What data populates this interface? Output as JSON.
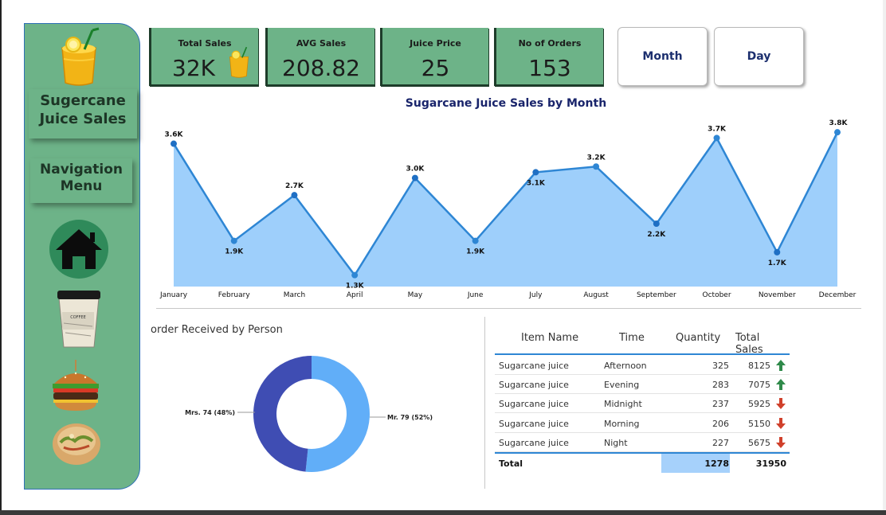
{
  "app": {
    "title": "Sugercane Juice Sales",
    "nav_heading": "Navigation Menu"
  },
  "sidebar": {
    "title_lines": [
      "Sugercane",
      "Juice Sales"
    ],
    "nav_lines": [
      "Navigation",
      "Menu"
    ],
    "icons": [
      "juice-glass-icon",
      "home-icon",
      "coffee-cup-image",
      "burger-image",
      "sandwich-image"
    ],
    "coffee_label": "COFFEE"
  },
  "kpis": [
    {
      "label": "Total Sales",
      "value": "32K"
    },
    {
      "label": "AVG Sales",
      "value": "208.82"
    },
    {
      "label": "Juice Price",
      "value": "25"
    },
    {
      "label": "No of Orders",
      "value": "153"
    }
  ],
  "buttons": {
    "month": "Month",
    "day": "Day"
  },
  "colors": {
    "sidebar": "#6db388",
    "line": "#2e86d4",
    "area": "#9ecffb",
    "donut_dark": "#3f4db3",
    "donut_light": "#61aef8",
    "up": "#2f8a4a",
    "down": "#d0402b"
  },
  "line_chart": {
    "title": "Sugarcane Juice Sales by Month"
  },
  "chart_data": [
    {
      "type": "area",
      "title": "Sugarcane Juice Sales by Month",
      "categories": [
        "January",
        "February",
        "March",
        "April",
        "May",
        "June",
        "July",
        "August",
        "September",
        "October",
        "November",
        "December"
      ],
      "values": [
        3600,
        1900,
        2700,
        1300,
        3000,
        1900,
        3100,
        3200,
        2200,
        3700,
        1700,
        3800
      ],
      "data_labels": [
        "3.6K",
        "1.9K",
        "2.7K",
        "1.3K",
        "3.0K",
        "1.9K",
        "3.1K",
        "3.2K",
        "2.2K",
        "3.7K",
        "1.7K",
        "3.8K"
      ],
      "ylim": [
        1100,
        3900
      ]
    },
    {
      "type": "pie",
      "title": "order Received by Person",
      "labels": [
        "Mrs.",
        "Mr."
      ],
      "values": [
        74,
        79
      ],
      "percents": [
        "48%",
        "52%"
      ],
      "slice_labels": [
        "Mrs. 74 (48%)",
        "Mr. 79 (52%)"
      ]
    }
  ],
  "table": {
    "headers": [
      "Item Name",
      "Time",
      "Quantity",
      "Total Sales"
    ],
    "rows": [
      {
        "item": "Sugarcane juice",
        "time": "Afternoon",
        "qty": "325",
        "sales": "8125",
        "trend": "up"
      },
      {
        "item": "Sugarcane juice",
        "time": "Evening",
        "qty": "283",
        "sales": "7075",
        "trend": "up"
      },
      {
        "item": "Sugarcane juice",
        "time": "Midnight",
        "qty": "237",
        "sales": "5925",
        "trend": "down"
      },
      {
        "item": "Sugarcane juice",
        "time": "Morning",
        "qty": "206",
        "sales": "5150",
        "trend": "down"
      },
      {
        "item": "Sugarcane juice",
        "time": "Night",
        "qty": "227",
        "sales": "5675",
        "trend": "down"
      }
    ],
    "total": {
      "label": "Total",
      "qty": "1278",
      "sales": "31950"
    }
  }
}
